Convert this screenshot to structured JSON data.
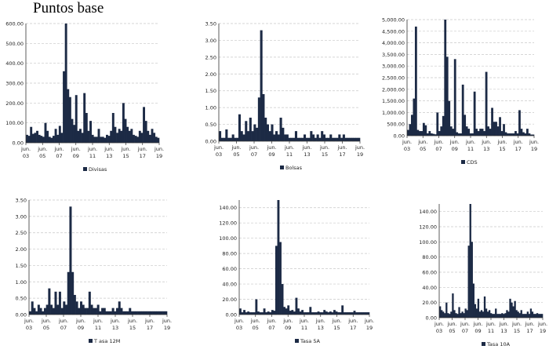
{
  "title": "Puntos base",
  "colors": {
    "series": "#1c2a45",
    "grid": "#c8c8c8",
    "axis": "#333333"
  },
  "chart_data": [
    {
      "type": "bar",
      "legend": "Divisas",
      "ylim": [
        0,
        600
      ],
      "yticks": [
        0,
        100,
        200,
        300,
        400,
        500,
        600
      ],
      "decimals": 2,
      "xticks": [
        [
          "jun.",
          "03"
        ],
        [
          "jun.",
          "05"
        ],
        [
          "jun.",
          "07"
        ],
        [
          "jun.",
          "09"
        ],
        [
          "jun.",
          "11"
        ],
        [
          "jun.",
          "13"
        ],
        [
          "jun.",
          "15"
        ],
        [
          "jun.",
          "17"
        ],
        [
          "jun.",
          "19"
        ]
      ],
      "values": [
        40,
        35,
        80,
        45,
        50,
        60,
        40,
        35,
        30,
        100,
        60,
        30,
        25,
        35,
        70,
        40,
        85,
        50,
        360,
        600,
        270,
        230,
        120,
        90,
        240,
        60,
        70,
        50,
        250,
        150,
        60,
        110,
        40,
        30,
        30,
        70,
        30,
        30,
        25,
        40,
        35,
        60,
        150,
        80,
        50,
        70,
        60,
        200,
        120,
        80,
        60,
        70,
        40,
        35,
        30,
        60,
        50,
        180,
        110,
        60,
        40,
        70,
        50,
        30,
        25
      ]
    },
    {
      "type": "bar",
      "legend": "Bolsas",
      "ylim": [
        0,
        3.5
      ],
      "yticks": [
        0,
        0.5,
        1,
        1.5,
        2,
        2.5,
        3,
        3.5
      ],
      "decimals": 2,
      "xticks": [
        [
          "jun.",
          "03"
        ],
        [
          "jun.",
          "05"
        ],
        [
          "jun.",
          "07"
        ],
        [
          "jun.",
          "09"
        ],
        [
          "jun.",
          "11"
        ],
        [
          "jun.",
          "13"
        ],
        [
          "jun.",
          "15"
        ],
        [
          "jun.",
          "17"
        ],
        [
          "jun.",
          "19"
        ]
      ],
      "values": [
        0.3,
        0.1,
        0.1,
        0.35,
        0.1,
        0.1,
        0.2,
        0.1,
        0.1,
        0.8,
        0.3,
        0.2,
        0.6,
        0.3,
        0.7,
        0.3,
        0.5,
        0.4,
        1.3,
        3.3,
        1.4,
        0.7,
        0.5,
        0.3,
        0.5,
        0.2,
        0.3,
        0.2,
        0.7,
        0.4,
        0.2,
        0.2,
        0.1,
        0.1,
        0.1,
        0.3,
        0.1,
        0.1,
        0.1,
        0.2,
        0.1,
        0.1,
        0.3,
        0.2,
        0.1,
        0.2,
        0.1,
        0.3,
        0.2,
        0.1,
        0.1,
        0.2,
        0.1,
        0.1,
        0.1,
        0.2,
        0.1,
        0.2,
        0.1,
        0.1,
        0.1,
        0.1,
        0.1,
        0.1,
        0.1
      ]
    },
    {
      "type": "bar",
      "legend": "CDS",
      "ylim": [
        0,
        5000
      ],
      "yticks": [
        0,
        500,
        1000,
        1500,
        2000,
        2500,
        3000,
        3500,
        4000,
        4500,
        5000
      ],
      "decimals": 2,
      "xticks": [
        [
          "jun.",
          "03"
        ],
        [
          "jun.",
          "05"
        ],
        [
          "jun.",
          "07"
        ],
        [
          "jun.",
          "09"
        ],
        [
          "jun.",
          "11"
        ],
        [
          "jun.",
          "13"
        ],
        [
          "jun.",
          "15"
        ],
        [
          "jun.",
          "17"
        ],
        [
          "jun.",
          "19"
        ]
      ],
      "values": [
        250,
        500,
        900,
        1600,
        4700,
        250,
        200,
        200,
        550,
        450,
        100,
        200,
        100,
        80,
        60,
        1000,
        200,
        400,
        850,
        5000,
        3400,
        1500,
        400,
        300,
        3300,
        150,
        100,
        100,
        2200,
        900,
        400,
        300,
        100,
        100,
        1900,
        300,
        200,
        300,
        300,
        200,
        2750,
        400,
        300,
        1200,
        600,
        600,
        400,
        800,
        200,
        500,
        150,
        100,
        100,
        100,
        100,
        200,
        100,
        1100,
        300,
        150,
        100,
        300,
        100,
        50,
        50
      ]
    },
    {
      "type": "bar",
      "legend": "T asa 12M",
      "ylim": [
        0,
        3.5
      ],
      "yticks": [
        0,
        0.5,
        1,
        1.5,
        2,
        2.5,
        3,
        3.5
      ],
      "decimals": 2,
      "xticks": [
        [
          "jun.",
          "03"
        ],
        [
          "jun.",
          "05"
        ],
        [
          "jun.",
          "07"
        ],
        [
          "jun.",
          "09"
        ],
        [
          "jun.",
          "11"
        ],
        [
          "jun.",
          "13"
        ],
        [
          "jun.",
          "15"
        ],
        [
          "jun.",
          "17"
        ],
        [
          "jun.",
          "19"
        ]
      ],
      "values": [
        0.1,
        0.4,
        0.2,
        0.1,
        0.3,
        0.2,
        0.1,
        0.2,
        0.3,
        0.8,
        0.3,
        0.2,
        0.7,
        0.3,
        0.7,
        0.2,
        0.4,
        0.3,
        1.3,
        3.3,
        1.3,
        0.6,
        0.4,
        0.2,
        0.4,
        0.3,
        0.2,
        0.2,
        0.7,
        0.3,
        0.2,
        0.2,
        0.3,
        0.1,
        0.2,
        0.2,
        0.1,
        0.1,
        0.1,
        0.2,
        0.1,
        0.2,
        0.4,
        0.2,
        0.1,
        0.1,
        0.1,
        0.2,
        0.1,
        0.1,
        0.1,
        0.1,
        0.1,
        0.1,
        0.1,
        0.1,
        0.1,
        0.1,
        0.1,
        0.1,
        0.1,
        0.1,
        0.1,
        0.1,
        0.1
      ]
    },
    {
      "type": "bar",
      "legend": "Tasa 5A",
      "ylim": [
        0,
        150
      ],
      "yticks": [
        0,
        20,
        40,
        60,
        80,
        100,
        120,
        140
      ],
      "decimals": 2,
      "xticks": [
        [
          "jun.",
          "03"
        ],
        [
          "jun.",
          "05"
        ],
        [
          "jun.",
          "07"
        ],
        [
          "jun.",
          "09"
        ],
        [
          "jun.",
          "11"
        ],
        [
          "jun.",
          "13"
        ],
        [
          "jun.",
          "15"
        ],
        [
          "jun.",
          "17"
        ],
        [
          "jun.",
          "19"
        ]
      ],
      "values": [
        8,
        3,
        6,
        3,
        4,
        3,
        3,
        3,
        20,
        4,
        3,
        3,
        8,
        3,
        4,
        3,
        6,
        5,
        90,
        150,
        95,
        40,
        10,
        8,
        12,
        5,
        6,
        4,
        22,
        8,
        4,
        6,
        3,
        3,
        3,
        10,
        3,
        3,
        3,
        4,
        3,
        3,
        6,
        4,
        3,
        4,
        3,
        6,
        4,
        3,
        3,
        12,
        3,
        3,
        3,
        3,
        3,
        5,
        3,
        3,
        3,
        3,
        3,
        3,
        3
      ]
    },
    {
      "type": "bar",
      "legend": "Tasa 10A",
      "ylim": [
        0,
        150
      ],
      "yticks": [
        0,
        20,
        40,
        60,
        80,
        100,
        120,
        140
      ],
      "decimals": 2,
      "xticks": [
        [
          "jun.",
          "03"
        ],
        [
          "jun.",
          "05"
        ],
        [
          "jun.",
          "07"
        ],
        [
          "jun.",
          "09"
        ],
        [
          "jun.",
          "11"
        ],
        [
          "jun.",
          "13"
        ],
        [
          "jun.",
          "15"
        ],
        [
          "jun.",
          "17"
        ],
        [
          "jun.",
          "19"
        ]
      ],
      "values": [
        15,
        10,
        8,
        6,
        20,
        6,
        5,
        8,
        32,
        10,
        6,
        5,
        14,
        6,
        8,
        6,
        12,
        10,
        95,
        150,
        100,
        45,
        18,
        12,
        25,
        8,
        10,
        8,
        28,
        12,
        8,
        10,
        6,
        5,
        5,
        12,
        5,
        5,
        5,
        6,
        5,
        6,
        10,
        8,
        25,
        20,
        15,
        22,
        10,
        8,
        6,
        10,
        5,
        5,
        5,
        8,
        5,
        12,
        8,
        5,
        5,
        6,
        5,
        5,
        5
      ]
    }
  ]
}
